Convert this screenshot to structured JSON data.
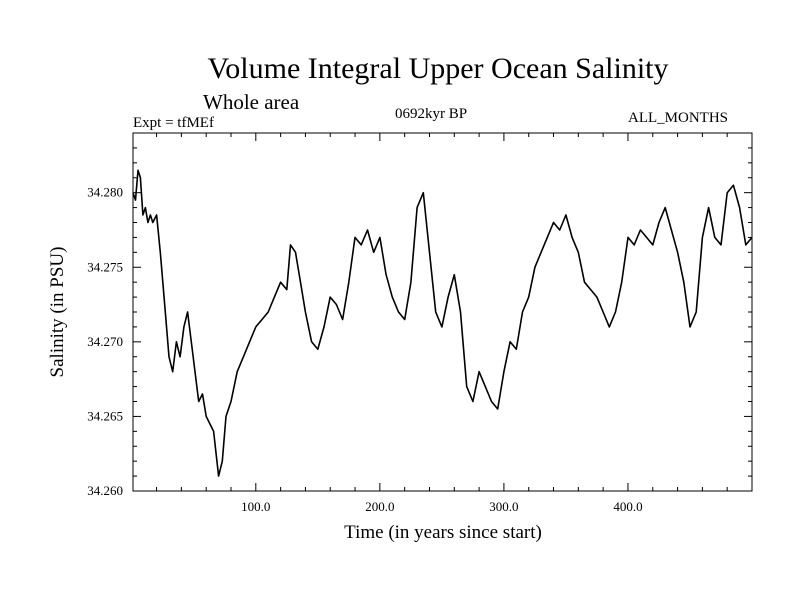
{
  "header": {
    "title": "Volume Integral Upper Ocean Salinity",
    "subtitle": "Whole area",
    "experiment": "Expt = tfMEf",
    "period": "0692kyr BP",
    "months": "ALL_MONTHS"
  },
  "chart_data": {
    "type": "line",
    "title": "Volume Integral Upper Ocean Salinity",
    "xlabel": "Time (in years since start)",
    "ylabel": "Salinity (in PSU)",
    "xlim": [
      1,
      500
    ],
    "ylim": [
      34.26,
      34.284
    ],
    "x_ticks": [
      100,
      200,
      300,
      400
    ],
    "x_tick_labels": [
      "100.0",
      "200.0",
      "300.0",
      "400.0"
    ],
    "y_ticks": [
      34.26,
      34.265,
      34.27,
      34.275,
      34.28
    ],
    "y_tick_labels": [
      "34.260",
      "34.265",
      "34.270",
      "34.275",
      "34.280"
    ],
    "grid": false,
    "series": [
      {
        "color": "#000000",
        "x": [
          1,
          3,
          5,
          7,
          9,
          11,
          13,
          15,
          17,
          20,
          23,
          27,
          30,
          33,
          36,
          39,
          42,
          45,
          48,
          51,
          54,
          57,
          60,
          63,
          66,
          70,
          73,
          76,
          80,
          85,
          90,
          95,
          100,
          105,
          110,
          115,
          120,
          125,
          128,
          132,
          136,
          140,
          145,
          150,
          155,
          160,
          165,
          170,
          175,
          180,
          185,
          190,
          195,
          200,
          205,
          210,
          215,
          220,
          225,
          230,
          235,
          240,
          245,
          250,
          255,
          260,
          265,
          270,
          275,
          280,
          285,
          290,
          295,
          300,
          305,
          310,
          315,
          320,
          325,
          330,
          335,
          340,
          345,
          350,
          355,
          360,
          365,
          370,
          375,
          380,
          385,
          390,
          395,
          400,
          405,
          410,
          415,
          420,
          425,
          430,
          435,
          440,
          445,
          450,
          455,
          460,
          465,
          470,
          475,
          480,
          485,
          490,
          495,
          500
        ],
        "y": [
          34.28,
          34.2795,
          34.2815,
          34.281,
          34.2785,
          34.279,
          34.278,
          34.2785,
          34.278,
          34.2785,
          34.276,
          34.272,
          34.269,
          34.268,
          34.27,
          34.269,
          34.271,
          34.272,
          34.27,
          34.268,
          34.266,
          34.2665,
          34.265,
          34.2645,
          34.264,
          34.261,
          34.262,
          34.265,
          34.266,
          34.268,
          34.269,
          34.27,
          34.271,
          34.2715,
          34.272,
          34.273,
          34.274,
          34.2735,
          34.2765,
          34.276,
          34.274,
          34.272,
          34.27,
          34.2695,
          34.271,
          34.273,
          34.2725,
          34.2715,
          34.274,
          34.277,
          34.2765,
          34.2775,
          34.276,
          34.277,
          34.2745,
          34.273,
          34.272,
          34.2715,
          34.274,
          34.279,
          34.28,
          34.276,
          34.272,
          34.271,
          34.273,
          34.2745,
          34.272,
          34.267,
          34.266,
          34.268,
          34.267,
          34.266,
          34.2655,
          34.268,
          34.27,
          34.2695,
          34.272,
          34.273,
          34.275,
          34.276,
          34.277,
          34.278,
          34.2775,
          34.2785,
          34.277,
          34.276,
          34.274,
          34.2735,
          34.273,
          34.272,
          34.271,
          34.272,
          34.274,
          34.277,
          34.2765,
          34.2775,
          34.277,
          34.2765,
          34.278,
          34.279,
          34.2775,
          34.276,
          34.274,
          34.271,
          34.272,
          34.277,
          34.279,
          34.277,
          34.2765,
          34.28,
          34.2805,
          34.279,
          34.2765,
          34.277
        ]
      }
    ]
  }
}
